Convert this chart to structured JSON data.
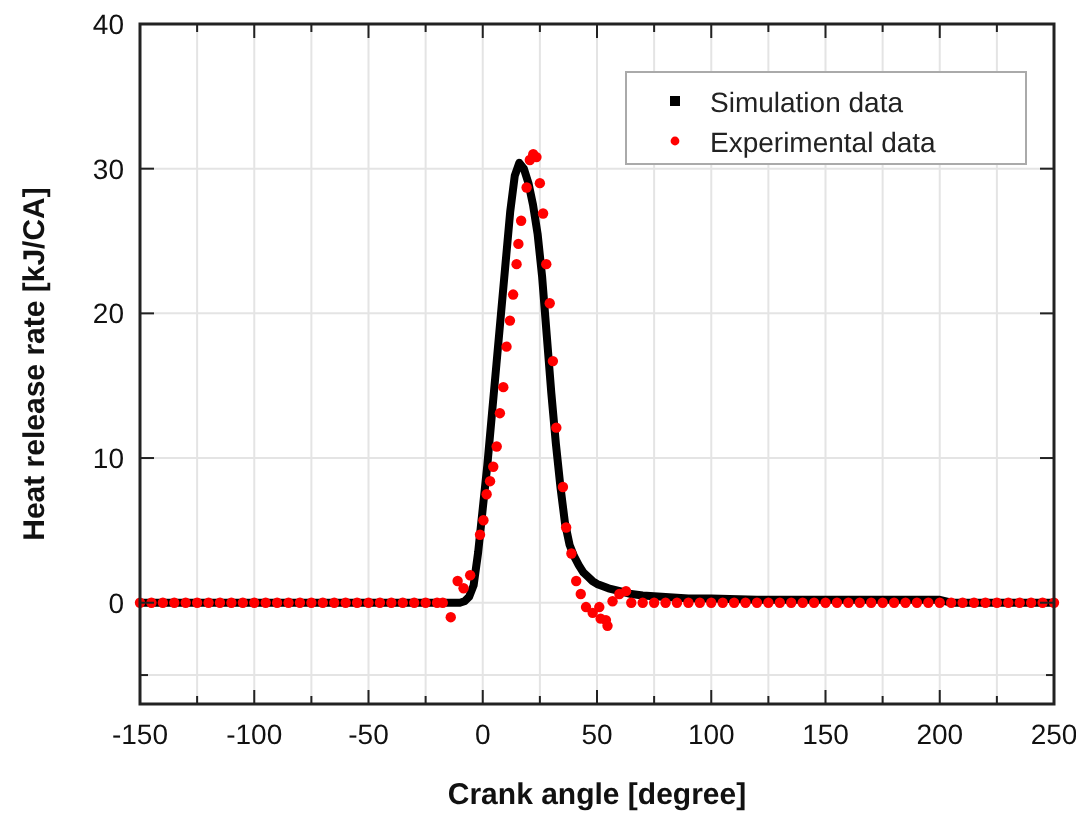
{
  "chart_data": {
    "type": "scatter",
    "xlabel": "Crank angle [degree]",
    "ylabel": "Heat release rate [kJ/CA]",
    "xlim": [
      -150,
      250
    ],
    "ylim": [
      -7,
      40
    ],
    "xticks": [
      -150,
      {
        "value": -125,
        "label": null
      },
      -100,
      {
        "value": -75,
        "label": null
      },
      -50,
      {
        "value": -25,
        "label": null
      },
      0,
      {
        "value": 25,
        "label": null
      },
      50,
      {
        "value": 75,
        "label": null
      },
      100,
      {
        "value": 125,
        "label": null
      },
      150,
      {
        "value": 175,
        "label": null
      },
      200,
      {
        "value": 225,
        "label": null
      },
      250
    ],
    "yticks": [
      {
        "value": -5,
        "label": null
      },
      0,
      10,
      20,
      30,
      40
    ],
    "grid": true,
    "legend": "top right",
    "series": [
      {
        "name": "Simulation data",
        "type": "line",
        "color": "#000000",
        "x": [
          -150,
          -10,
          -8,
          -6,
          -4,
          -2,
          0,
          2,
          4,
          6,
          8,
          10,
          12,
          14,
          16,
          18,
          20,
          22,
          24,
          26,
          28,
          30,
          32,
          34,
          36,
          38,
          40,
          42,
          44,
          46,
          48,
          50,
          55,
          60,
          65,
          70,
          80,
          90,
          100,
          120,
          140,
          160,
          180,
          200,
          205,
          250
        ],
        "values": [
          0,
          0,
          0.1,
          0.4,
          1.2,
          3.5,
          6.5,
          9.5,
          13,
          16.5,
          20,
          23.5,
          27,
          29.5,
          30.4,
          30,
          29,
          27.5,
          25.5,
          22.5,
          18.5,
          14.5,
          11,
          8,
          5.5,
          4,
          3.2,
          2.6,
          2.1,
          1.8,
          1.5,
          1.3,
          1,
          0.8,
          0.6,
          0.5,
          0.4,
          0.3,
          0.3,
          0.2,
          0.2,
          0.2,
          0.2,
          0.2,
          0,
          0
        ]
      },
      {
        "name": "Experimental data",
        "color": "#ff0000",
        "x": [
          -150,
          -145,
          -140,
          -135,
          -130,
          -125,
          -120,
          -115,
          -110,
          -105,
          -100,
          -95,
          -90,
          -85,
          -80,
          -75,
          -70,
          -65,
          -60,
          -55,
          -50,
          -45,
          -40,
          -35,
          -30,
          -25,
          -20,
          -17.5,
          -14,
          -11,
          -8.4,
          -5.5,
          -1.2,
          0.3,
          1.7,
          3.2,
          4.6,
          6.1,
          7.5,
          9,
          10.4,
          11.9,
          13.3,
          14.8,
          15.6,
          16.8,
          19.2,
          20.6,
          22.1,
          23.5,
          25,
          26.4,
          27.8,
          29.3,
          30.7,
          32.2,
          35.1,
          36.5,
          38.8,
          40.9,
          42.9,
          45.2,
          48.1,
          51,
          51.6,
          53.9,
          54.6,
          56.8,
          59.8,
          62.7,
          65,
          70,
          75,
          80,
          85,
          90,
          95,
          100,
          105,
          110,
          115,
          120,
          125,
          130,
          135,
          140,
          145,
          150,
          155,
          160,
          165,
          170,
          175,
          180,
          185,
          190,
          195,
          200,
          205,
          210,
          215,
          220,
          225,
          230,
          235,
          240,
          245,
          250
        ],
        "values": [
          0,
          0,
          0,
          0,
          0,
          0,
          0,
          0,
          0,
          0,
          0,
          0,
          0,
          0,
          0,
          0,
          0,
          0,
          0,
          0,
          0,
          0,
          0,
          0,
          0,
          0,
          0,
          0,
          -1,
          1.5,
          1,
          1.9,
          4.7,
          5.7,
          7.5,
          8.4,
          9.4,
          10.8,
          13.1,
          14.9,
          17.7,
          19.5,
          21.3,
          23.4,
          24.8,
          26.4,
          28.7,
          30.6,
          31,
          30.8,
          29,
          26.9,
          23.4,
          20.7,
          16.7,
          12.1,
          8,
          5.2,
          3.4,
          1.5,
          0.6,
          -0.3,
          -0.7,
          -0.3,
          -1.1,
          -1.2,
          -1.6,
          0.1,
          0.6,
          0.8,
          0,
          0,
          0,
          0,
          0,
          0,
          0,
          0,
          0,
          0,
          0,
          0,
          0,
          0,
          0,
          0,
          0,
          0,
          0,
          0,
          0,
          0,
          0,
          0,
          0,
          0,
          0,
          0,
          0,
          0,
          0,
          0,
          0,
          0,
          0,
          0,
          0,
          0
        ]
      }
    ]
  }
}
